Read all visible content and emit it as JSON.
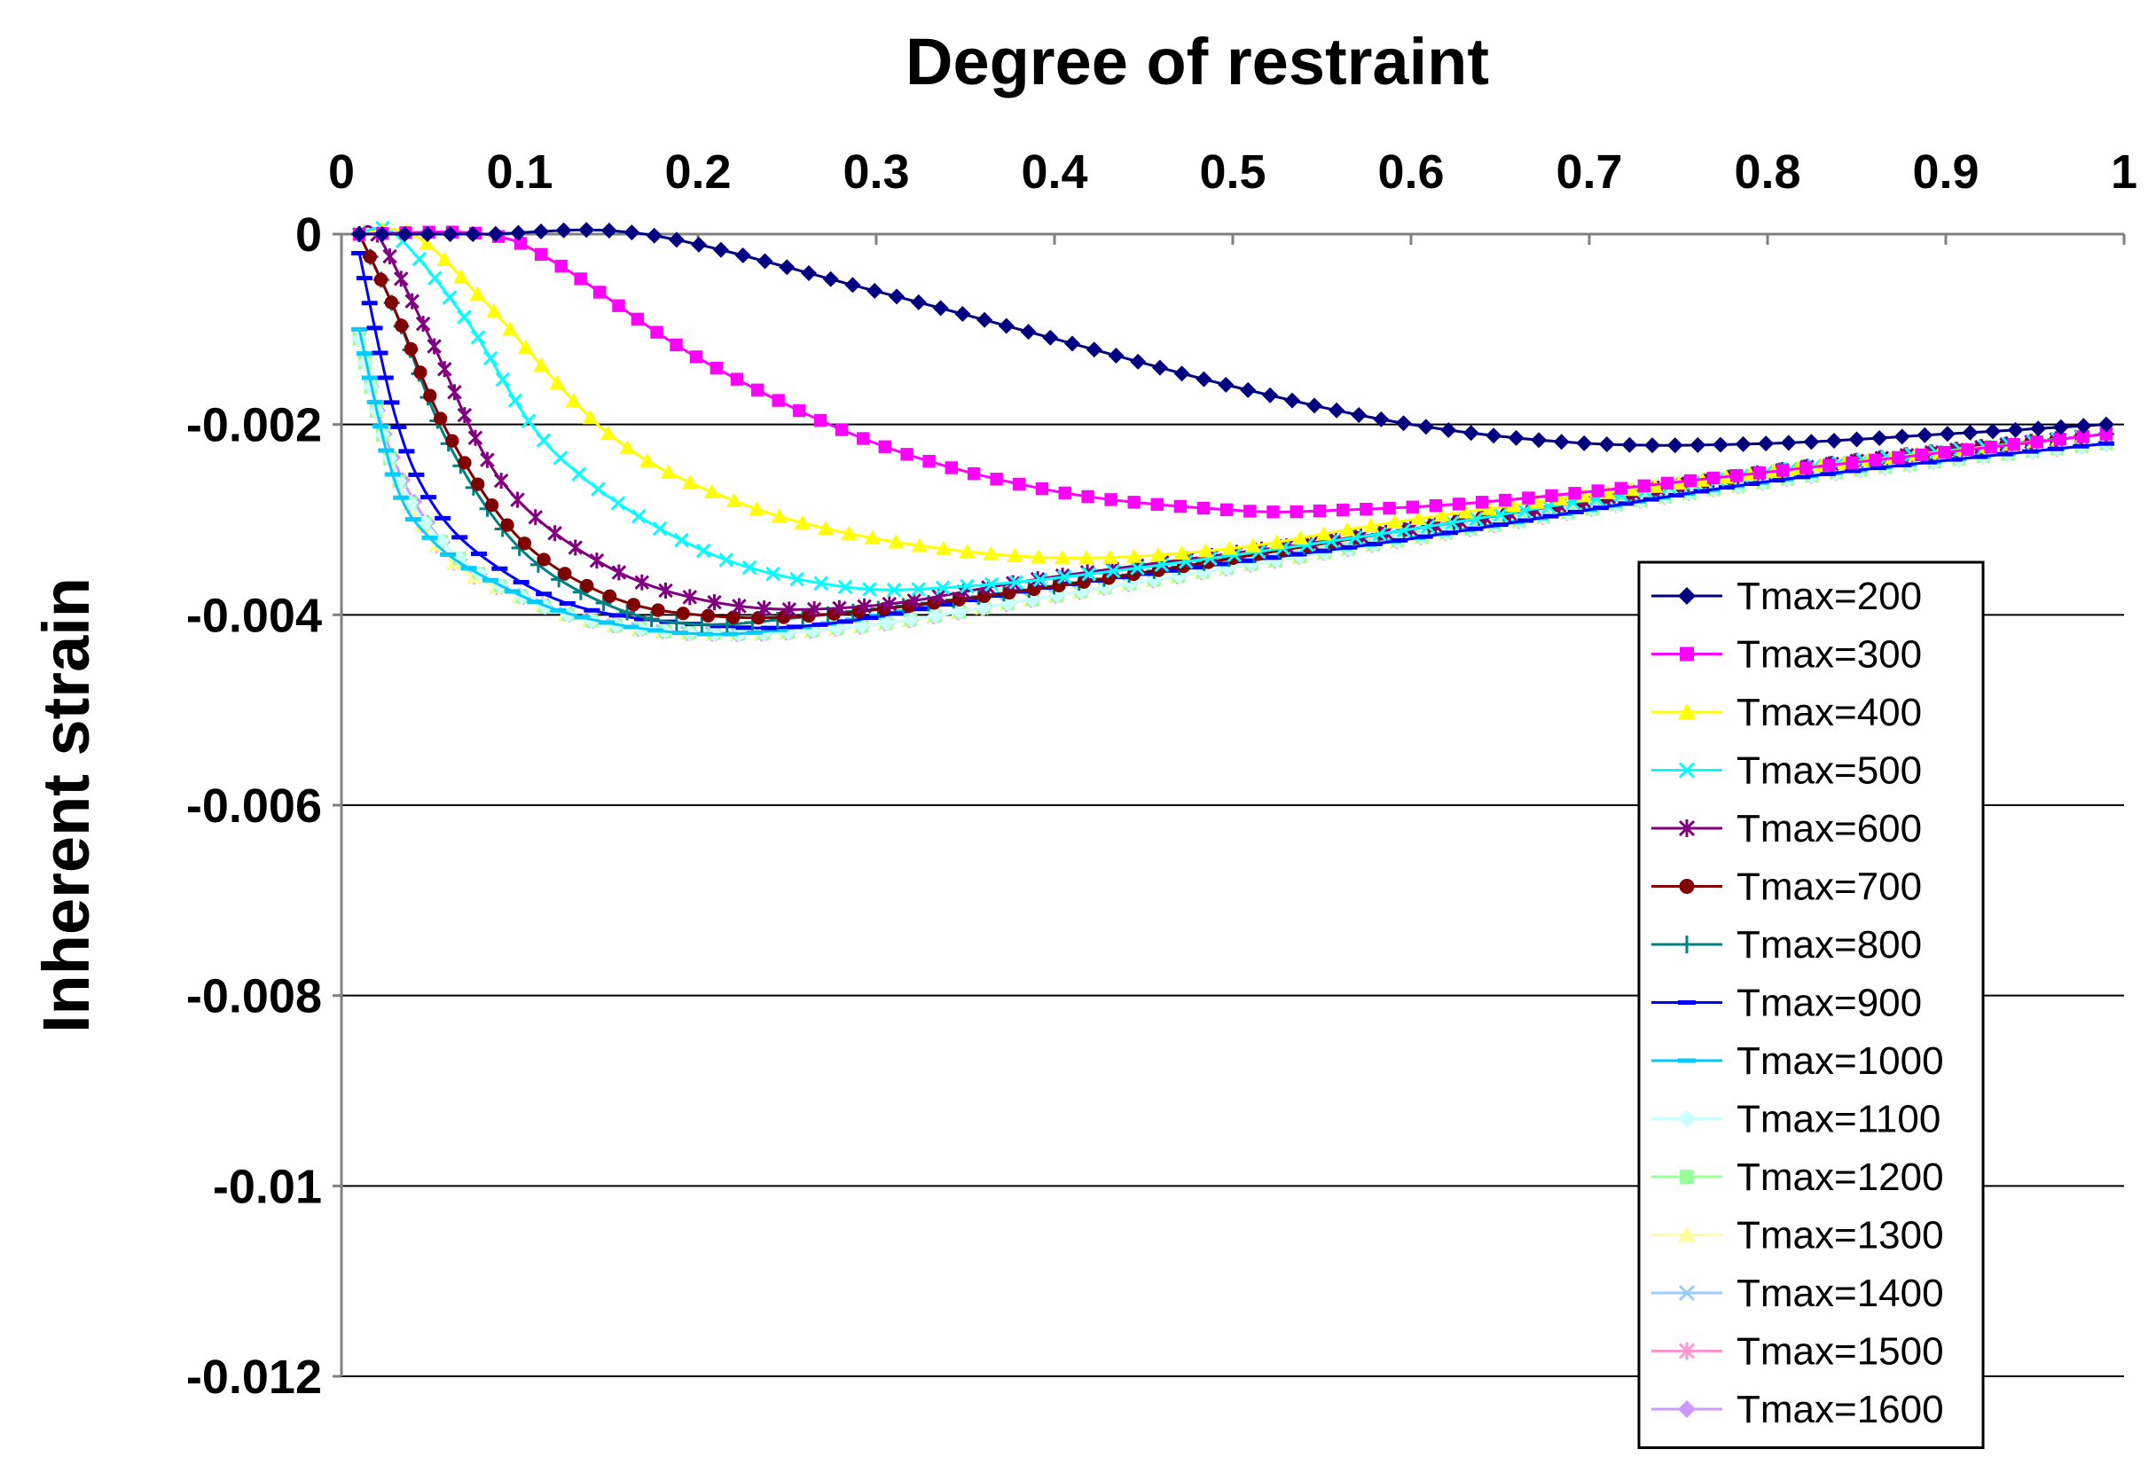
{
  "chart_data": {
    "type": "line",
    "title": "",
    "xlabel": "Degree of restraint",
    "ylabel": "Inherent strain",
    "xlim": [
      0,
      1
    ],
    "ylim": [
      -0.012,
      0
    ],
    "x_axis_position": "top",
    "grid": "horizontal",
    "legend_position": "bottom-right",
    "x_tick_labels": [
      "0",
      "0.1",
      "0.2",
      "0.3",
      "0.4",
      "0.5",
      "0.6",
      "0.7",
      "0.8",
      "0.9",
      "1"
    ],
    "y_tick_labels": [
      "0",
      "-0.002",
      "-0.004",
      "-0.006",
      "-0.008",
      "-0.01",
      "-0.012"
    ],
    "x_ticks": [
      0,
      0.1,
      0.2,
      0.3,
      0.4,
      0.5,
      0.6,
      0.7,
      0.8,
      0.9,
      1
    ],
    "y_ticks": [
      0,
      -0.002,
      -0.004,
      -0.006,
      -0.008,
      -0.01,
      -0.012
    ],
    "series": [
      {
        "name": "Tmax=200",
        "color": "#000080",
        "marker": "diamond",
        "points": [
          [
            0.01,
            0
          ],
          [
            0.08,
            0
          ],
          [
            0.17,
            0
          ],
          [
            0.3,
            -0.0006
          ],
          [
            0.4,
            -0.0011
          ],
          [
            0.5,
            -0.0016
          ],
          [
            0.6,
            -0.002
          ],
          [
            0.7,
            -0.0022
          ],
          [
            0.8,
            -0.0022
          ],
          [
            0.9,
            -0.0021
          ],
          [
            0.99,
            -0.002
          ]
        ]
      },
      {
        "name": "Tmax=300",
        "color": "#FF00FF",
        "marker": "square",
        "points": [
          [
            0.01,
            0
          ],
          [
            0.08,
            0
          ],
          [
            0.12,
            -0.0003
          ],
          [
            0.2,
            -0.0013
          ],
          [
            0.3,
            -0.0022
          ],
          [
            0.4,
            -0.0027
          ],
          [
            0.5,
            -0.0029
          ],
          [
            0.56,
            -0.0029
          ],
          [
            0.65,
            -0.0028
          ],
          [
            0.8,
            -0.0025
          ],
          [
            0.99,
            -0.0021
          ]
        ]
      },
      {
        "name": "Tmax=400",
        "color": "#FFFF00",
        "marker": "triangle",
        "points": [
          [
            0.01,
            0
          ],
          [
            0.04,
            0
          ],
          [
            0.08,
            -0.0007
          ],
          [
            0.15,
            -0.0021
          ],
          [
            0.22,
            -0.0028
          ],
          [
            0.3,
            -0.0032
          ],
          [
            0.4,
            -0.0034
          ],
          [
            0.5,
            -0.0033
          ],
          [
            0.6,
            -0.003
          ],
          [
            0.8,
            -0.0025
          ],
          [
            0.99,
            -0.0021
          ]
        ]
      },
      {
        "name": "Tmax=500",
        "color": "#00FFFF",
        "marker": "x",
        "points": [
          [
            0.01,
            0
          ],
          [
            0.03,
            0
          ],
          [
            0.07,
            -0.0009
          ],
          [
            0.12,
            -0.0023
          ],
          [
            0.2,
            -0.0033
          ],
          [
            0.28,
            -0.0037
          ],
          [
            0.35,
            -0.0037
          ],
          [
            0.45,
            -0.0035
          ],
          [
            0.6,
            -0.0031
          ],
          [
            0.8,
            -0.0025
          ],
          [
            0.99,
            -0.0021
          ]
        ]
      },
      {
        "name": "Tmax=600",
        "color": "#800080",
        "marker": "star",
        "points": [
          [
            0.01,
            0
          ],
          [
            0.02,
            0
          ],
          [
            0.05,
            -0.0011
          ],
          [
            0.09,
            -0.0026
          ],
          [
            0.15,
            -0.0035
          ],
          [
            0.22,
            -0.0039
          ],
          [
            0.3,
            -0.0039
          ],
          [
            0.4,
            -0.0036
          ],
          [
            0.6,
            -0.0031
          ],
          [
            0.8,
            -0.0025
          ],
          [
            0.99,
            -0.0021
          ]
        ]
      },
      {
        "name": "Tmax=700",
        "color": "#800000",
        "marker": "circle",
        "points": [
          [
            0.01,
            0
          ],
          [
            0.03,
            -0.0008
          ],
          [
            0.06,
            -0.0021
          ],
          [
            0.1,
            -0.0032
          ],
          [
            0.15,
            -0.0038
          ],
          [
            0.2,
            -0.004
          ],
          [
            0.27,
            -0.004
          ],
          [
            0.4,
            -0.0037
          ],
          [
            0.6,
            -0.0031
          ],
          [
            0.8,
            -0.0025
          ],
          [
            0.99,
            -0.0021
          ]
        ]
      },
      {
        "name": "Tmax=800",
        "color": "#008080",
        "marker": "plus",
        "points": [
          [
            0.01,
            0
          ],
          [
            0.03,
            -0.0008
          ],
          [
            0.06,
            -0.0022
          ],
          [
            0.1,
            -0.0033
          ],
          [
            0.15,
            -0.0039
          ],
          [
            0.2,
            -0.0041
          ],
          [
            0.27,
            -0.004
          ],
          [
            0.4,
            -0.0037
          ],
          [
            0.6,
            -0.0031
          ],
          [
            0.8,
            -0.0025
          ],
          [
            0.99,
            -0.0021
          ]
        ]
      },
      {
        "name": "Tmax=900",
        "color": "#0000FF",
        "marker": "dash",
        "points": [
          [
            0.01,
            -0.0002
          ],
          [
            0.03,
            -0.0019
          ],
          [
            0.05,
            -0.0028
          ],
          [
            0.08,
            -0.0034
          ],
          [
            0.13,
            -0.0039
          ],
          [
            0.2,
            -0.0041
          ],
          [
            0.27,
            -0.0041
          ],
          [
            0.4,
            -0.0037
          ],
          [
            0.6,
            -0.0032
          ],
          [
            0.8,
            -0.0026
          ],
          [
            0.99,
            -0.0022
          ]
        ]
      },
      {
        "name": "Tmax=1000",
        "color": "#00CCFF",
        "marker": "dash",
        "points": [
          [
            0.01,
            -0.001
          ],
          [
            0.03,
            -0.0026
          ],
          [
            0.05,
            -0.0032
          ],
          [
            0.08,
            -0.0036
          ],
          [
            0.13,
            -0.004
          ],
          [
            0.2,
            -0.0042
          ],
          [
            0.27,
            -0.0041
          ],
          [
            0.4,
            -0.0037
          ],
          [
            0.6,
            -0.0032
          ],
          [
            0.8,
            -0.0026
          ],
          [
            0.99,
            -0.0022
          ]
        ]
      },
      {
        "name": "Tmax=1100",
        "color": "#CCFFFF",
        "marker": "diamond",
        "points": [
          [
            0.01,
            -0.0011
          ],
          [
            0.03,
            -0.0025
          ],
          [
            0.06,
            -0.0033
          ],
          [
            0.1,
            -0.0038
          ],
          [
            0.15,
            -0.0041
          ],
          [
            0.22,
            -0.0042
          ],
          [
            0.3,
            -0.0041
          ],
          [
            0.4,
            -0.0038
          ],
          [
            0.6,
            -0.0032
          ],
          [
            0.8,
            -0.0026
          ],
          [
            0.99,
            -0.0022
          ]
        ]
      },
      {
        "name": "Tmax=1200",
        "color": "#99FF99",
        "marker": "square",
        "points": [
          [
            0.01,
            -0.0011
          ],
          [
            0.03,
            -0.0025
          ],
          [
            0.06,
            -0.0033
          ],
          [
            0.1,
            -0.0038
          ],
          [
            0.15,
            -0.0041
          ],
          [
            0.22,
            -0.0042
          ],
          [
            0.3,
            -0.0041
          ],
          [
            0.4,
            -0.0038
          ],
          [
            0.6,
            -0.0032
          ],
          [
            0.8,
            -0.0026
          ],
          [
            0.99,
            -0.0022
          ]
        ]
      },
      {
        "name": "Tmax=1300",
        "color": "#FFFF99",
        "marker": "triangle",
        "points": [
          [
            0.01,
            -0.0011
          ],
          [
            0.03,
            -0.0025
          ],
          [
            0.06,
            -0.0034
          ],
          [
            0.1,
            -0.0038
          ],
          [
            0.15,
            -0.0041
          ],
          [
            0.22,
            -0.0042
          ],
          [
            0.3,
            -0.0041
          ],
          [
            0.4,
            -0.0038
          ],
          [
            0.6,
            -0.0032
          ],
          [
            0.8,
            -0.0026
          ],
          [
            0.99,
            -0.0022
          ]
        ]
      },
      {
        "name": "Tmax=1400",
        "color": "#99CCFF",
        "marker": "x",
        "points": [
          [
            0.01,
            -0.0011
          ],
          [
            0.03,
            -0.0025
          ],
          [
            0.06,
            -0.0034
          ],
          [
            0.1,
            -0.0038
          ],
          [
            0.15,
            -0.0041
          ],
          [
            0.22,
            -0.0042
          ],
          [
            0.3,
            -0.0041
          ],
          [
            0.4,
            -0.0038
          ],
          [
            0.6,
            -0.0032
          ],
          [
            0.8,
            -0.0026
          ],
          [
            0.99,
            -0.0022
          ]
        ]
      },
      {
        "name": "Tmax=1500",
        "color": "#FF99CC",
        "marker": "star",
        "points": [
          [
            0.01,
            -0.0011
          ],
          [
            0.03,
            -0.0025
          ],
          [
            0.06,
            -0.0034
          ],
          [
            0.1,
            -0.0038
          ],
          [
            0.15,
            -0.0041
          ],
          [
            0.22,
            -0.0042
          ],
          [
            0.3,
            -0.0041
          ],
          [
            0.4,
            -0.0038
          ],
          [
            0.6,
            -0.0032
          ],
          [
            0.8,
            -0.0026
          ],
          [
            0.99,
            -0.0022
          ]
        ]
      },
      {
        "name": "Tmax=1600",
        "color": "#CC99FF",
        "marker": "diamond",
        "points": [
          [
            0.01,
            -0.0011
          ],
          [
            0.03,
            -0.0024
          ],
          [
            0.06,
            -0.0033
          ],
          [
            0.1,
            -0.0038
          ],
          [
            0.15,
            -0.0041
          ],
          [
            0.22,
            -0.0042
          ],
          [
            0.3,
            -0.0041
          ],
          [
            0.4,
            -0.0038
          ],
          [
            0.6,
            -0.0032
          ],
          [
            0.8,
            -0.0026
          ],
          [
            0.99,
            -0.0022
          ]
        ]
      }
    ]
  }
}
